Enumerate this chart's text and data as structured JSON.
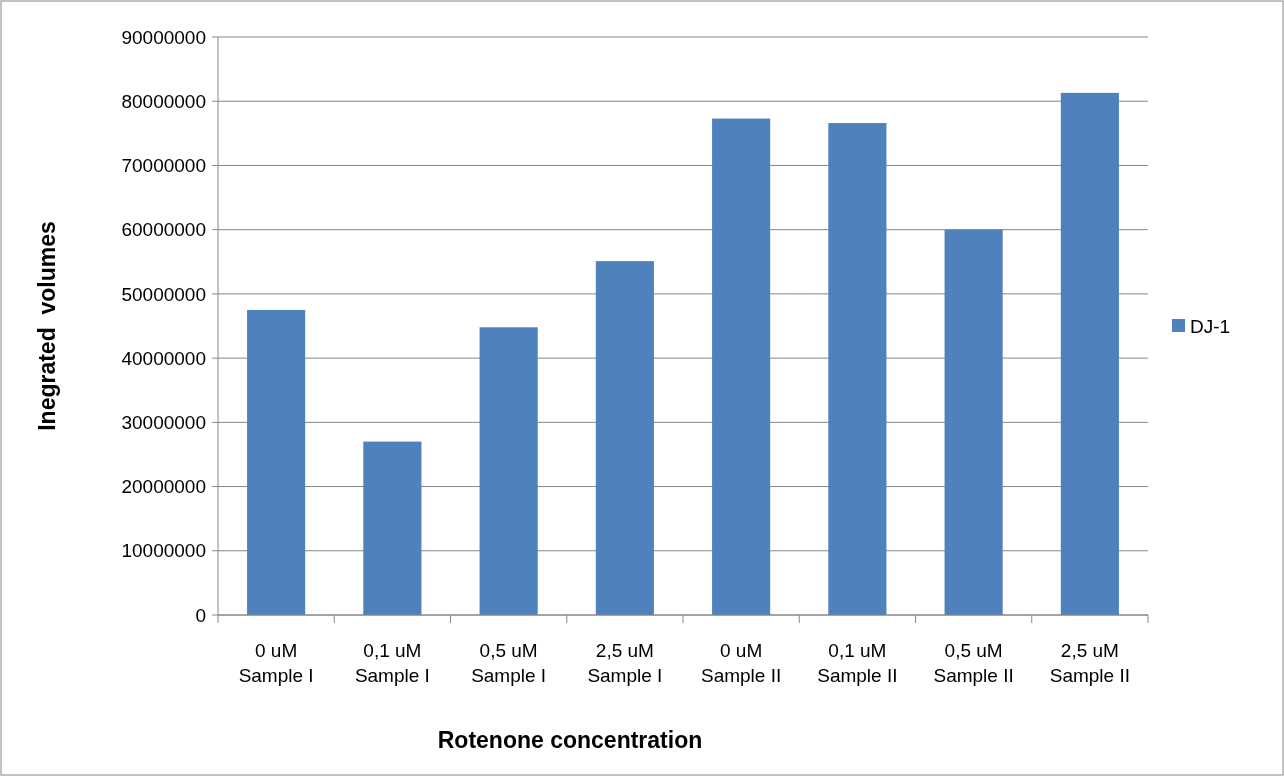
{
  "chart_data": {
    "type": "bar",
    "xlabel": "Rotenone concentration",
    "ylabel": "Inegrated  volumes",
    "categories": [
      "0 uM\nSample I",
      "0,1 uM\nSample I",
      "0,5 uM\nSample I",
      "2,5 uM\nSample I",
      "0 uM\nSample II",
      "0,1 uM\nSample II",
      "0,5 uM\nSample II",
      "2,5 uM\nSample II"
    ],
    "series": [
      {
        "name": "DJ-1",
        "color": "#4f81bd",
        "values": [
          47500000,
          27000000,
          44800000,
          55100000,
          77300000,
          76600000,
          60000000,
          81300000
        ]
      }
    ],
    "ylim": [
      0,
      90000000
    ],
    "yticks": [
      0,
      10000000,
      20000000,
      30000000,
      40000000,
      50000000,
      60000000,
      70000000,
      80000000,
      90000000
    ],
    "grid": "y",
    "legend": "right"
  }
}
